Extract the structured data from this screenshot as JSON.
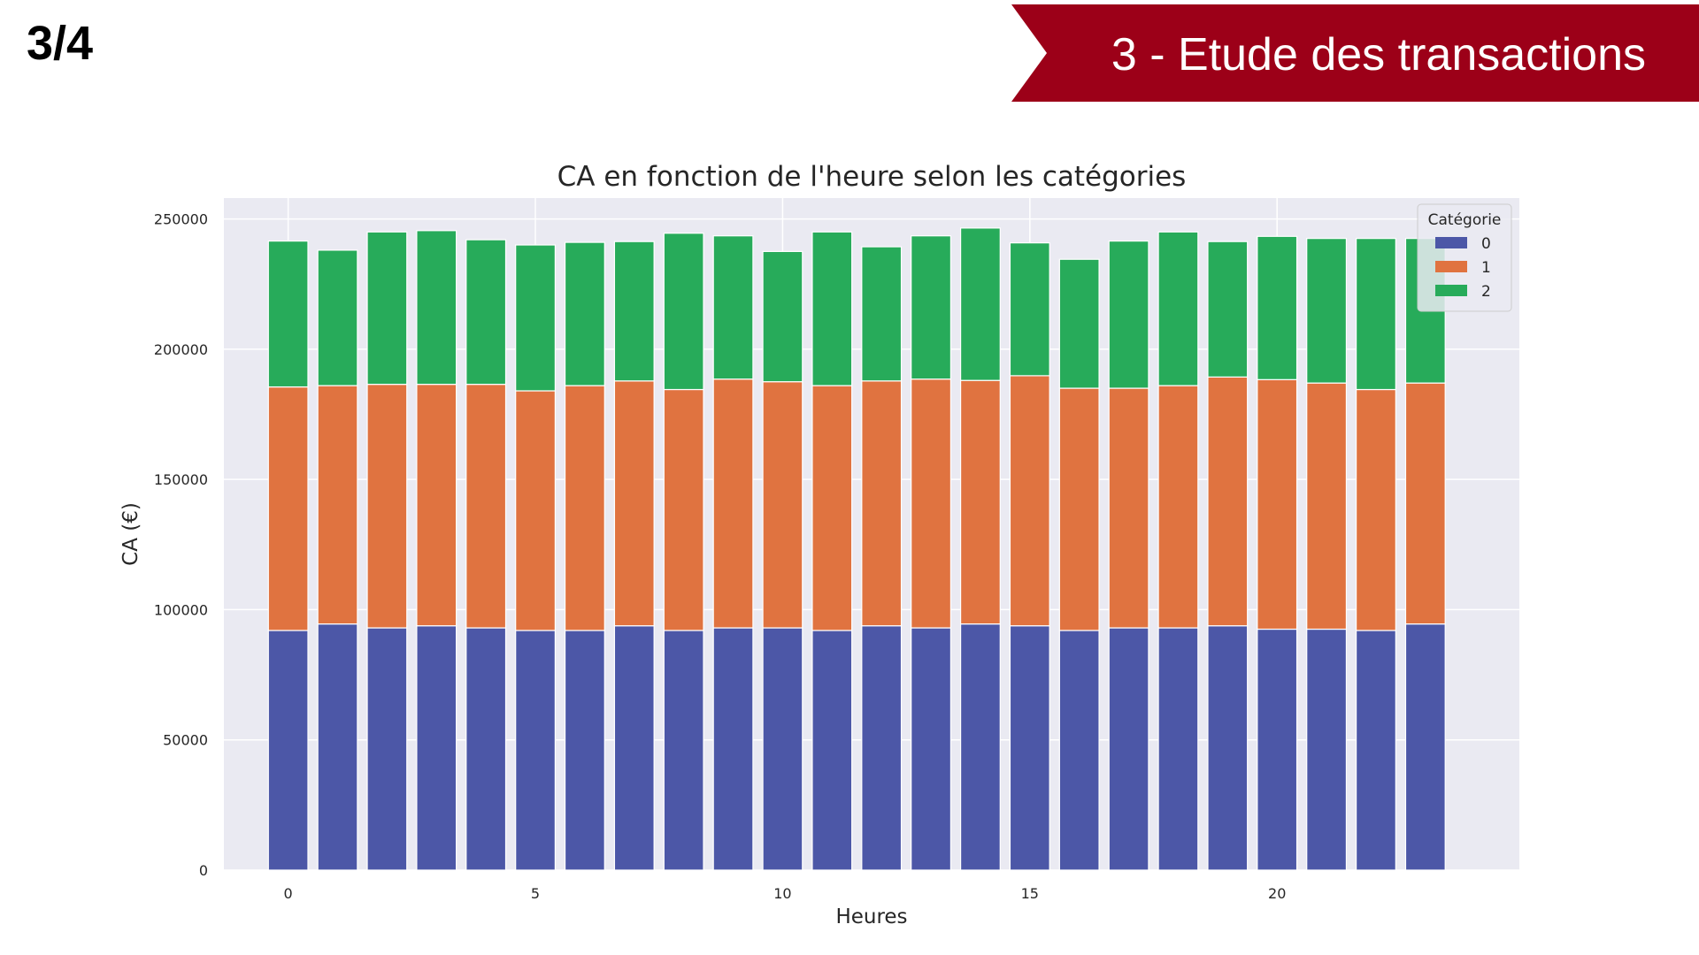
{
  "slide": {
    "page_number": "3/4",
    "section_title": "3 - Etude des transactions"
  },
  "chart_data": {
    "type": "bar",
    "stacked": true,
    "title": "CA en fonction de l'heure selon les catégories",
    "xlabel": "Heures",
    "ylabel": "CA (€)",
    "ylim": [
      0,
      258000
    ],
    "yticks": [
      0,
      50000,
      100000,
      150000,
      200000,
      250000
    ],
    "xlim": [
      -1.3,
      24.9
    ],
    "xticks": [
      0,
      5,
      10,
      15,
      20
    ],
    "x": [
      0,
      1,
      2,
      3,
      4,
      5,
      6,
      7,
      8,
      9,
      10,
      11,
      12,
      13,
      14,
      15,
      16,
      17,
      18,
      19,
      20,
      21,
      22,
      23
    ],
    "grid": true,
    "legend": {
      "title": "Catégorie",
      "placement": "top-right"
    },
    "series": [
      {
        "name": "0",
        "color": "#4c57a7",
        "values": [
          92000,
          94500,
          93000,
          93800,
          93000,
          92000,
          92000,
          93800,
          92000,
          93000,
          93000,
          92000,
          93800,
          93000,
          94500,
          93800,
          92000,
          93000,
          93000,
          93800,
          92500,
          92500,
          92000,
          94500
        ]
      },
      {
        "name": "1",
        "color": "#e07340",
        "values": [
          93500,
          91500,
          93500,
          92700,
          93500,
          92000,
          94000,
          94000,
          92500,
          95500,
          94500,
          94000,
          94000,
          95500,
          93500,
          96000,
          93000,
          92000,
          93000,
          95500,
          95800,
          94500,
          92500,
          92500
        ]
      },
      {
        "name": "2",
        "color": "#27ab5a",
        "values": [
          56000,
          52000,
          58500,
          59000,
          55500,
          56000,
          55000,
          53500,
          60000,
          55000,
          50000,
          59000,
          51500,
          55000,
          58500,
          51000,
          49500,
          56500,
          59000,
          52000,
          55000,
          55500,
          58000,
          55500
        ]
      }
    ]
  }
}
